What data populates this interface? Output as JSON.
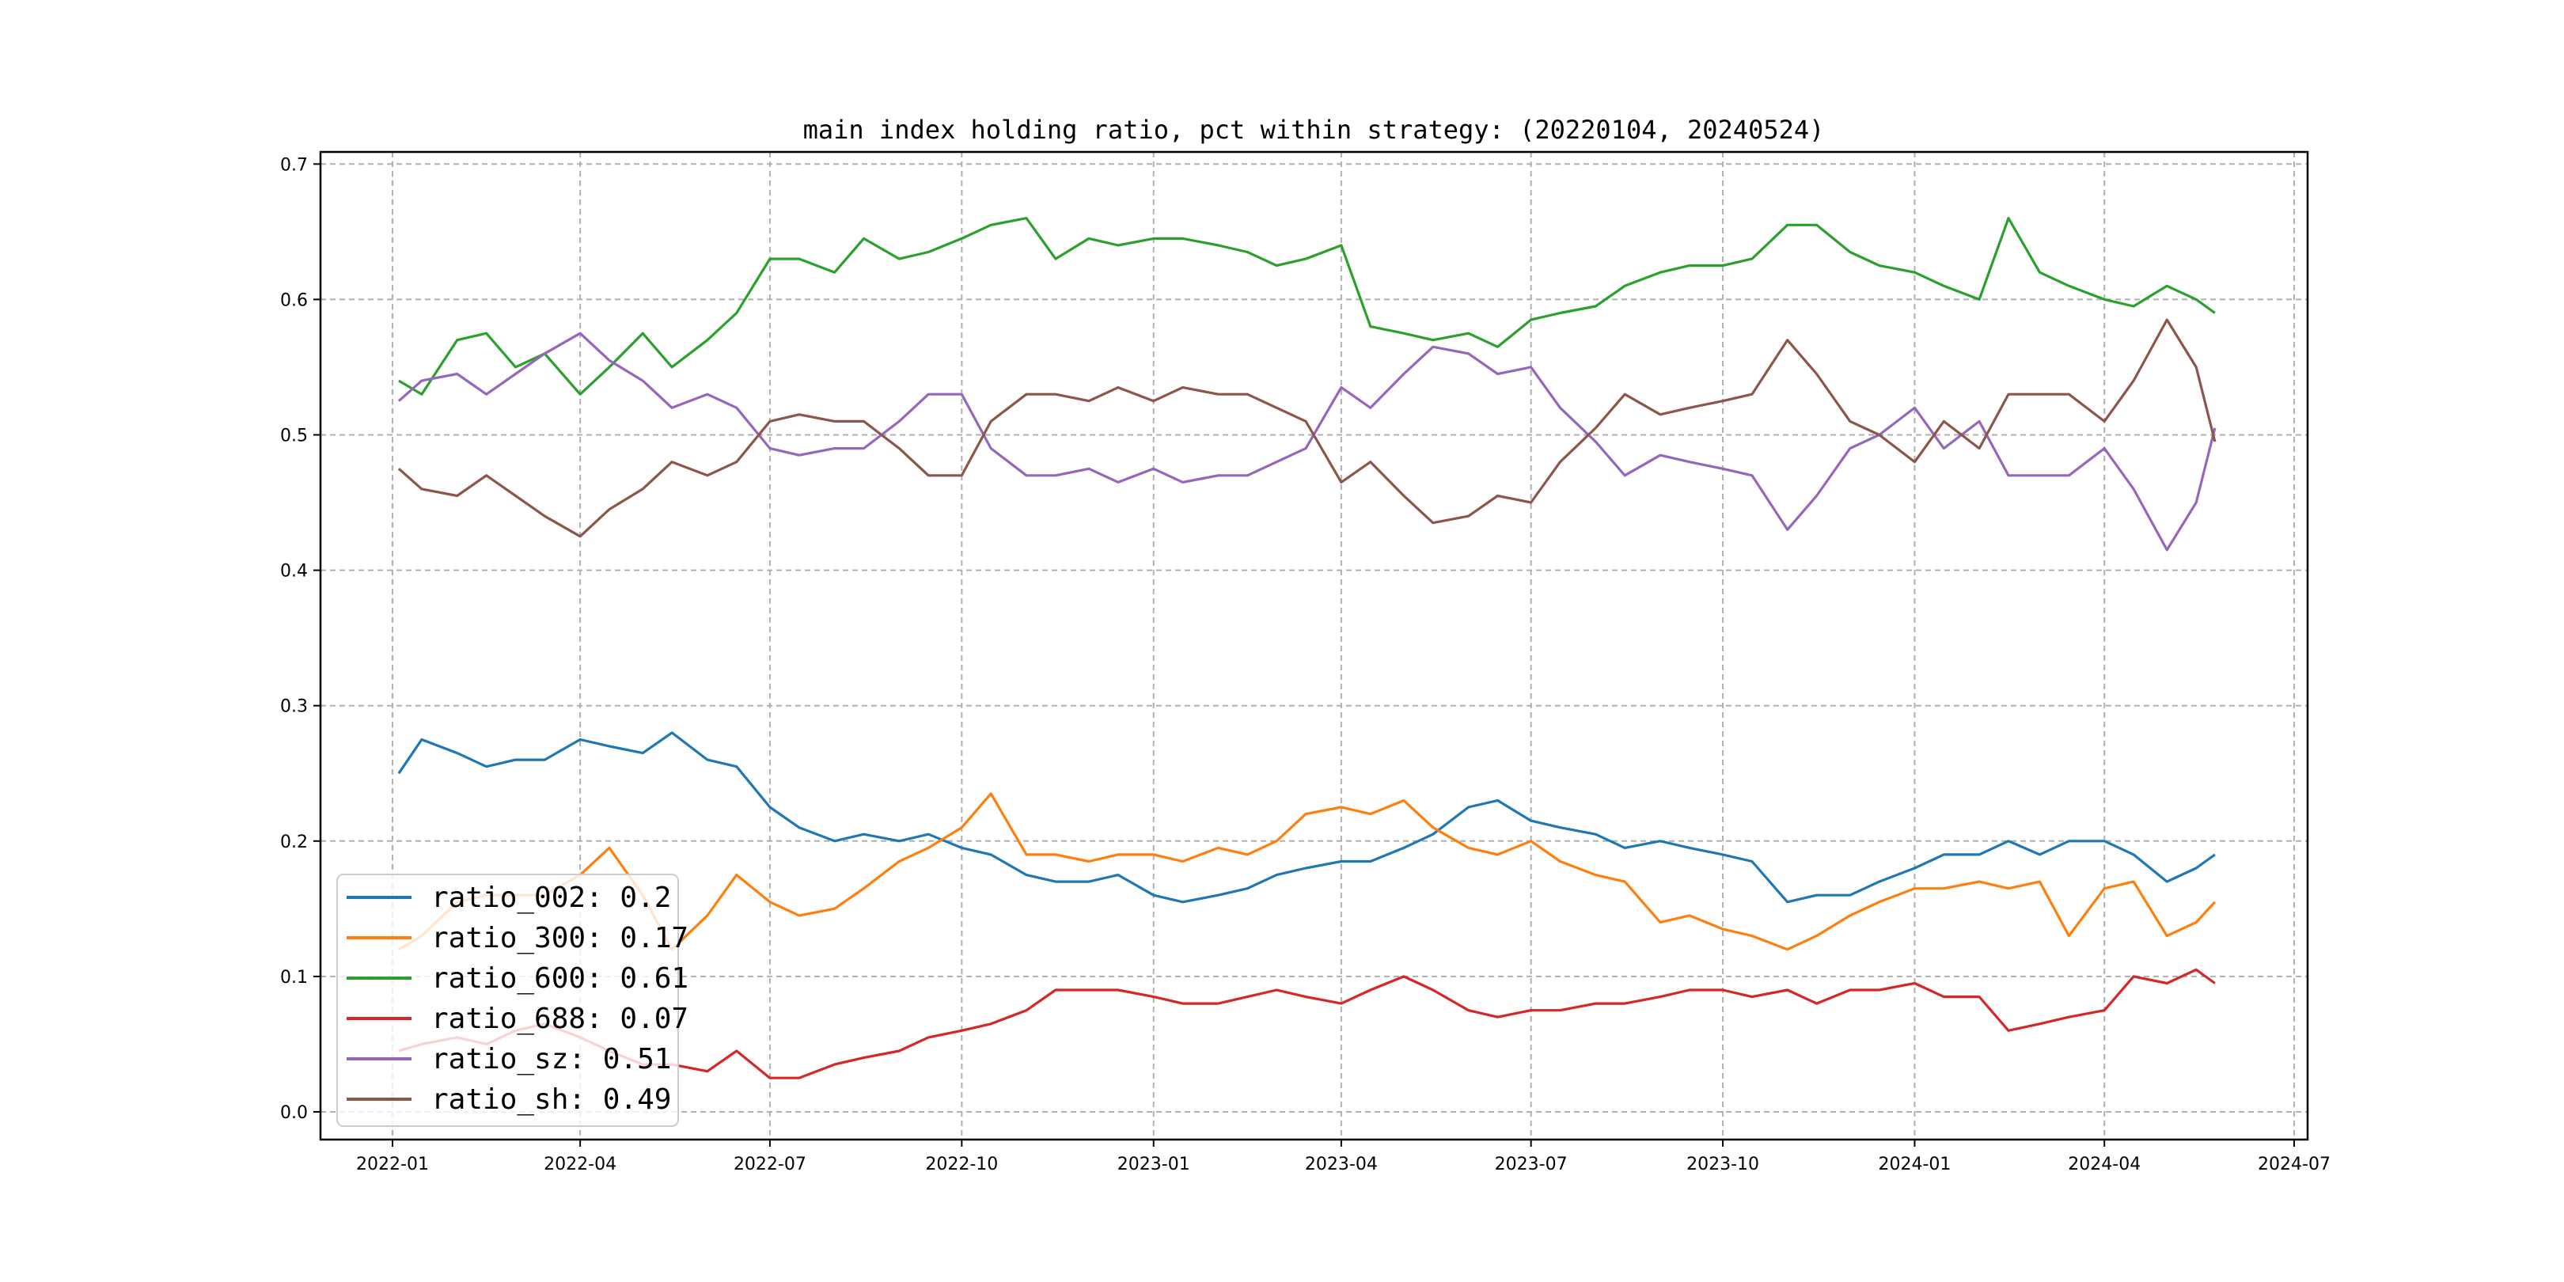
{
  "chart_data": {
    "type": "line",
    "title": "main index holding ratio, pct within strategy: (20220104, 20240524)",
    "xlabel": "",
    "ylabel": "",
    "ylim": [
      -0.02,
      0.71
    ],
    "xlim": [
      "2021-12-02",
      "2024-07-12"
    ],
    "grid": true,
    "legend_placement": "lower-left",
    "y_ticks": [
      "0.0",
      "0.1",
      "0.2",
      "0.3",
      "0.4",
      "0.5",
      "0.6",
      "0.7"
    ],
    "x_ticks": [
      "2022-01",
      "2022-04",
      "2022-07",
      "2022-10",
      "2023-01",
      "2023-04",
      "2023-07",
      "2023-10",
      "2024-01",
      "2024-04",
      "2024-07"
    ],
    "x": [
      "2022-01-04",
      "2022-01-15",
      "2022-02-01",
      "2022-02-15",
      "2022-03-01",
      "2022-03-15",
      "2022-04-01",
      "2022-04-15",
      "2022-05-01",
      "2022-05-15",
      "2022-06-01",
      "2022-06-15",
      "2022-07-01",
      "2022-07-15",
      "2022-08-01",
      "2022-08-15",
      "2022-09-01",
      "2022-09-15",
      "2022-10-01",
      "2022-10-15",
      "2022-11-01",
      "2022-11-15",
      "2022-12-01",
      "2022-12-15",
      "2023-01-01",
      "2023-01-15",
      "2023-02-01",
      "2023-02-15",
      "2023-03-01",
      "2023-03-15",
      "2023-04-01",
      "2023-04-15",
      "2023-05-01",
      "2023-05-15",
      "2023-06-01",
      "2023-06-15",
      "2023-07-01",
      "2023-07-15",
      "2023-08-01",
      "2023-08-15",
      "2023-09-01",
      "2023-09-15",
      "2023-10-01",
      "2023-10-15",
      "2023-11-01",
      "2023-11-15",
      "2023-12-01",
      "2023-12-15",
      "2024-01-01",
      "2024-01-15",
      "2024-02-01",
      "2024-02-15",
      "2024-03-01",
      "2024-03-15",
      "2024-04-01",
      "2024-04-15",
      "2024-05-01",
      "2024-05-15",
      "2024-05-24"
    ],
    "series": [
      {
        "name": "ratio_002",
        "legend": "ratio_002: 0.2",
        "color": "#1f77b4",
        "values": [
          0.25,
          0.275,
          0.265,
          0.255,
          0.26,
          0.26,
          0.275,
          0.27,
          0.265,
          0.28,
          0.26,
          0.255,
          0.225,
          0.21,
          0.2,
          0.205,
          0.2,
          0.205,
          0.195,
          0.19,
          0.175,
          0.17,
          0.17,
          0.175,
          0.16,
          0.155,
          0.16,
          0.165,
          0.175,
          0.18,
          0.185,
          0.185,
          0.195,
          0.205,
          0.225,
          0.23,
          0.215,
          0.21,
          0.205,
          0.195,
          0.2,
          0.195,
          0.19,
          0.185,
          0.155,
          0.16,
          0.16,
          0.17,
          0.18,
          0.19,
          0.19,
          0.2,
          0.19,
          0.2,
          0.2,
          0.19,
          0.17,
          0.18,
          0.19
        ]
      },
      {
        "name": "ratio_300",
        "legend": "ratio_300: 0.17",
        "color": "#ff7f0e",
        "values": [
          0.12,
          0.13,
          0.155,
          0.16,
          0.16,
          0.16,
          0.175,
          0.195,
          0.16,
          0.12,
          0.145,
          0.175,
          0.155,
          0.145,
          0.15,
          0.165,
          0.185,
          0.195,
          0.21,
          0.235,
          0.19,
          0.19,
          0.185,
          0.19,
          0.19,
          0.185,
          0.195,
          0.19,
          0.2,
          0.22,
          0.225,
          0.22,
          0.23,
          0.21,
          0.195,
          0.19,
          0.2,
          0.185,
          0.175,
          0.17,
          0.14,
          0.145,
          0.135,
          0.13,
          0.12,
          0.13,
          0.145,
          0.155,
          0.165,
          0.165,
          0.17,
          0.165,
          0.17,
          0.13,
          0.165,
          0.17,
          0.13,
          0.14,
          0.155
        ]
      },
      {
        "name": "ratio_600",
        "legend": "ratio_600: 0.61",
        "color": "#2ca02c",
        "values": [
          0.54,
          0.53,
          0.57,
          0.575,
          0.55,
          0.56,
          0.53,
          0.55,
          0.575,
          0.55,
          0.57,
          0.59,
          0.63,
          0.63,
          0.62,
          0.645,
          0.63,
          0.635,
          0.645,
          0.655,
          0.66,
          0.63,
          0.645,
          0.64,
          0.645,
          0.645,
          0.64,
          0.635,
          0.625,
          0.63,
          0.64,
          0.58,
          0.575,
          0.57,
          0.575,
          0.565,
          0.585,
          0.59,
          0.595,
          0.61,
          0.62,
          0.625,
          0.625,
          0.63,
          0.655,
          0.655,
          0.635,
          0.625,
          0.62,
          0.61,
          0.6,
          0.66,
          0.62,
          0.61,
          0.6,
          0.595,
          0.61,
          0.6,
          0.59
        ]
      },
      {
        "name": "ratio_688",
        "legend": "ratio_688: 0.07",
        "color": "#d62728",
        "values": [
          0.045,
          0.05,
          0.055,
          0.05,
          0.06,
          0.065,
          0.055,
          0.045,
          0.035,
          0.035,
          0.03,
          0.045,
          0.025,
          0.025,
          0.035,
          0.04,
          0.045,
          0.055,
          0.06,
          0.065,
          0.075,
          0.09,
          0.09,
          0.09,
          0.085,
          0.08,
          0.08,
          0.085,
          0.09,
          0.085,
          0.08,
          0.09,
          0.1,
          0.09,
          0.075,
          0.07,
          0.075,
          0.075,
          0.08,
          0.08,
          0.085,
          0.09,
          0.09,
          0.085,
          0.09,
          0.08,
          0.09,
          0.09,
          0.095,
          0.085,
          0.085,
          0.06,
          0.065,
          0.07,
          0.075,
          0.1,
          0.095,
          0.105,
          0.095
        ]
      },
      {
        "name": "ratio_sz",
        "legend": "ratio_sz: 0.51",
        "color": "#9467bd",
        "values": [
          0.525,
          0.54,
          0.545,
          0.53,
          0.545,
          0.56,
          0.575,
          0.555,
          0.54,
          0.52,
          0.53,
          0.52,
          0.49,
          0.485,
          0.49,
          0.49,
          0.51,
          0.53,
          0.53,
          0.49,
          0.47,
          0.47,
          0.475,
          0.465,
          0.475,
          0.465,
          0.47,
          0.47,
          0.48,
          0.49,
          0.535,
          0.52,
          0.545,
          0.565,
          0.56,
          0.545,
          0.55,
          0.52,
          0.495,
          0.47,
          0.485,
          0.48,
          0.475,
          0.47,
          0.43,
          0.455,
          0.49,
          0.5,
          0.52,
          0.49,
          0.51,
          0.47,
          0.47,
          0.47,
          0.49,
          0.46,
          0.415,
          0.45,
          0.505
        ]
      },
      {
        "name": "ratio_sh",
        "legend": "ratio_sh: 0.49",
        "color": "#8c564b",
        "values": [
          0.475,
          0.46,
          0.455,
          0.47,
          0.455,
          0.44,
          0.425,
          0.445,
          0.46,
          0.48,
          0.47,
          0.48,
          0.51,
          0.515,
          0.51,
          0.51,
          0.49,
          0.47,
          0.47,
          0.51,
          0.53,
          0.53,
          0.525,
          0.535,
          0.525,
          0.535,
          0.53,
          0.53,
          0.52,
          0.51,
          0.465,
          0.48,
          0.455,
          0.435,
          0.44,
          0.455,
          0.45,
          0.48,
          0.505,
          0.53,
          0.515,
          0.52,
          0.525,
          0.53,
          0.57,
          0.545,
          0.51,
          0.5,
          0.48,
          0.51,
          0.49,
          0.53,
          0.53,
          0.53,
          0.51,
          0.54,
          0.585,
          0.55,
          0.495
        ]
      }
    ]
  }
}
